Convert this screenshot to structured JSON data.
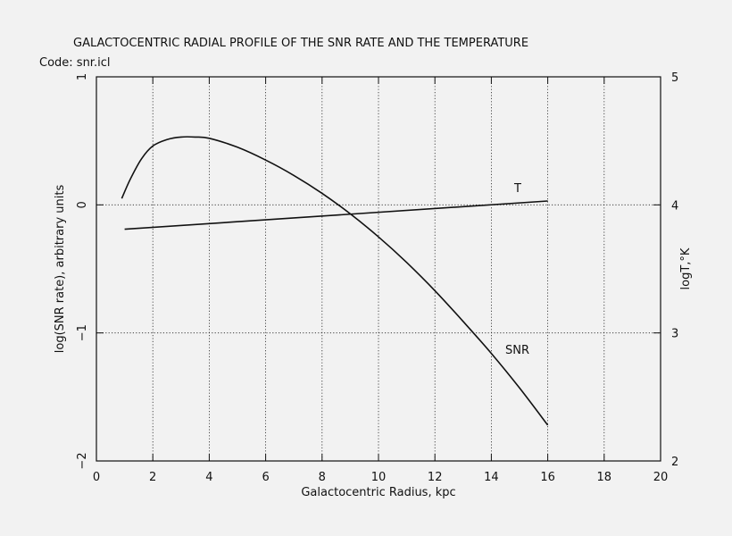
{
  "chart_data": {
    "type": "line",
    "title": "GALACTOCENTRIC RADIAL PROFILE OF THE SNR RATE AND THE TEMPERATURE",
    "subtitle": "Code: snr.icl",
    "xlabel": "Galactocentric Radius, kpc",
    "ylabel": "log(SNR rate), arbitrary units",
    "y2label": "logT,°K",
    "xlim": [
      0,
      20
    ],
    "ylim": [
      -2,
      1
    ],
    "y2lim": [
      2,
      5
    ],
    "xticks": [
      0,
      2,
      4,
      6,
      8,
      10,
      12,
      14,
      16,
      18,
      20
    ],
    "yticks": [
      -2,
      -1,
      0,
      1
    ],
    "y2ticks": [
      2,
      3,
      4,
      5
    ],
    "ytick_labels": [
      "−2",
      "−1",
      "0",
      "1"
    ],
    "y2tick_labels": [
      "2",
      "3",
      "4",
      "5"
    ],
    "grid": true,
    "series": [
      {
        "name": "SNR",
        "axis": "left",
        "x": [
          0.9,
          1.2,
          1.6,
          2.0,
          2.5,
          3.0,
          3.5,
          4.0,
          5.0,
          6.0,
          7.0,
          8.0,
          9.0,
          10.0,
          11.0,
          12.0,
          13.0,
          14.0,
          15.0,
          16.0
        ],
        "y": [
          0.05,
          0.2,
          0.36,
          0.46,
          0.51,
          0.53,
          0.53,
          0.52,
          0.45,
          0.35,
          0.23,
          0.09,
          -0.07,
          -0.25,
          -0.45,
          -0.67,
          -0.91,
          -1.16,
          -1.43,
          -1.72
        ]
      },
      {
        "name": "T",
        "axis": "right",
        "x": [
          1.0,
          16.0
        ],
        "y": [
          3.81,
          4.03
        ]
      }
    ]
  }
}
